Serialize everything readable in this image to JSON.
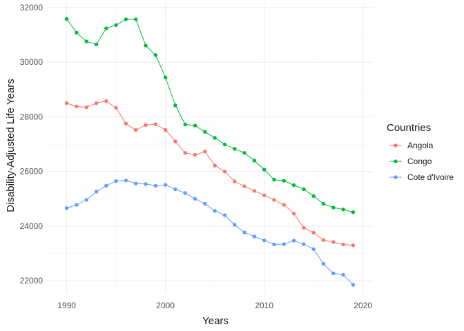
{
  "chart_data": {
    "type": "line",
    "xlabel": "Years",
    "ylabel": "Disability-Adjusted Life Years",
    "xlim": [
      1988,
      2021
    ],
    "ylim": [
      21550,
      32150
    ],
    "x_ticks": [
      1990,
      2000,
      2010,
      2020
    ],
    "y_ticks": [
      22000,
      24000,
      26000,
      28000,
      30000,
      32000
    ],
    "x_tick_labels": [
      "1990",
      "2000",
      "2010",
      "2020"
    ],
    "y_tick_labels": [
      "22000",
      "24000",
      "26000",
      "28000",
      "30000",
      "32000"
    ],
    "grid": true,
    "legend": {
      "title": "Countries",
      "position": "right"
    },
    "x": [
      1990,
      1991,
      1992,
      1993,
      1994,
      1995,
      1996,
      1997,
      1998,
      1999,
      2000,
      2001,
      2002,
      2003,
      2004,
      2005,
      2006,
      2007,
      2008,
      2009,
      2010,
      2011,
      2012,
      2013,
      2014,
      2015,
      2016,
      2017,
      2018,
      2019
    ],
    "series": [
      {
        "name": "Angola",
        "color": "#f8766d",
        "values": [
          28500,
          28380,
          28350,
          28500,
          28580,
          28330,
          27750,
          27520,
          27700,
          27730,
          27520,
          27100,
          26680,
          26610,
          26730,
          26220,
          26000,
          25640,
          25460,
          25290,
          25130,
          24960,
          24780,
          24460,
          23940,
          23760,
          23490,
          23420,
          23330,
          23300
        ]
      },
      {
        "name": "Congo",
        "color": "#00ba38",
        "values": [
          31580,
          31080,
          30760,
          30650,
          31240,
          31360,
          31570,
          31570,
          30610,
          30260,
          29440,
          28420,
          27720,
          27680,
          27450,
          27230,
          26990,
          26830,
          26680,
          26400,
          26070,
          25700,
          25660,
          25500,
          25350,
          25100,
          24820,
          24680,
          24610,
          24510
        ]
      },
      {
        "name": "Cote d'Ivoire",
        "color": "#619cff",
        "values": [
          24660,
          24780,
          24960,
          25260,
          25480,
          25650,
          25670,
          25560,
          25540,
          25480,
          25510,
          25350,
          25210,
          25000,
          24820,
          24560,
          24400,
          24050,
          23770,
          23620,
          23480,
          23330,
          23340,
          23470,
          23340,
          23160,
          22620,
          22270,
          22220,
          21850
        ]
      }
    ]
  }
}
